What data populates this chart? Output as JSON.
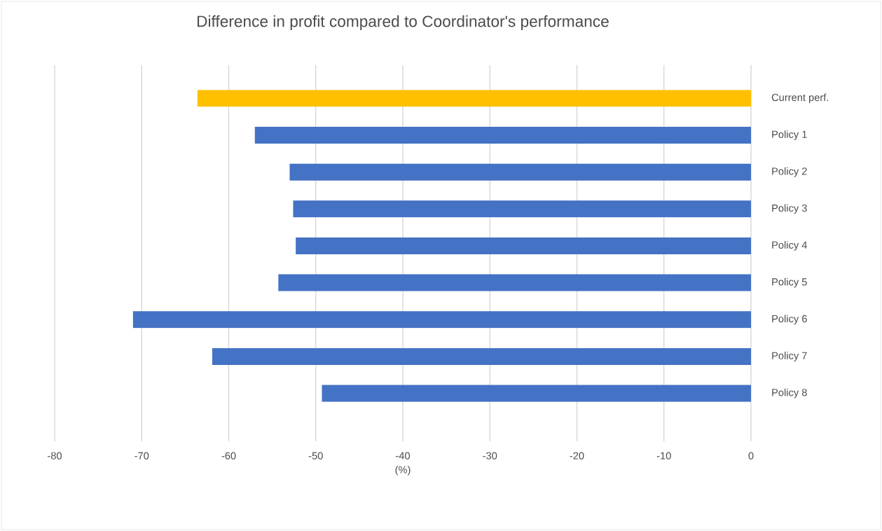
{
  "chart_data": {
    "type": "bar",
    "orientation": "horizontal",
    "title": "Difference in profit compared to Coordinator's performance",
    "xlabel": "(%)",
    "categories": [
      "Current perf.",
      "Policy 1",
      "Policy 2",
      "Policy 3",
      "Policy 4",
      "Policy 5",
      "Policy 6",
      "Policy 7",
      "Policy 8"
    ],
    "values": [
      -63.6,
      -57.0,
      -53.0,
      -52.6,
      -52.3,
      -54.3,
      -71.0,
      -61.9,
      -49.3
    ],
    "colors": [
      "#ffc000",
      "#4472c4",
      "#4472c4",
      "#4472c4",
      "#4472c4",
      "#4472c4",
      "#4472c4",
      "#4472c4",
      "#4472c4"
    ],
    "xlim": [
      -80,
      0
    ],
    "xticks": [
      -80,
      -70,
      -60,
      -50,
      -40,
      -30,
      -20,
      -10,
      0
    ],
    "grid": "x"
  }
}
